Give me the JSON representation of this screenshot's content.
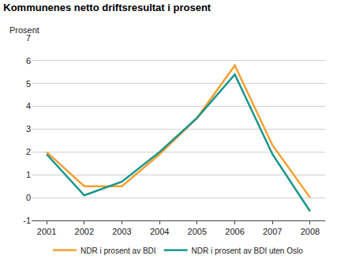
{
  "chart_data": {
    "type": "line",
    "title": "Kommunenes netto driftsresultat i prosent",
    "ylabel": "Prosent",
    "categories": [
      "2001",
      "2002",
      "2003",
      "2004",
      "2005",
      "2006",
      "2007",
      "2008"
    ],
    "series": [
      {
        "name": "NDR i prosent av BDI",
        "color": "#f5a030",
        "values": [
          2.0,
          0.5,
          0.5,
          1.9,
          3.5,
          5.8,
          2.3,
          0.0
        ]
      },
      {
        "name": "NDR i prosent av BDI uten Oslo",
        "color": "#17968c",
        "values": [
          1.9,
          0.1,
          0.7,
          2.0,
          3.5,
          5.4,
          1.9,
          -0.6
        ]
      }
    ],
    "ylim": [
      -1,
      7
    ],
    "yticks": [
      -1,
      0,
      1,
      2,
      3,
      4,
      5,
      6,
      7
    ],
    "grid": true,
    "legend": "bottom"
  }
}
